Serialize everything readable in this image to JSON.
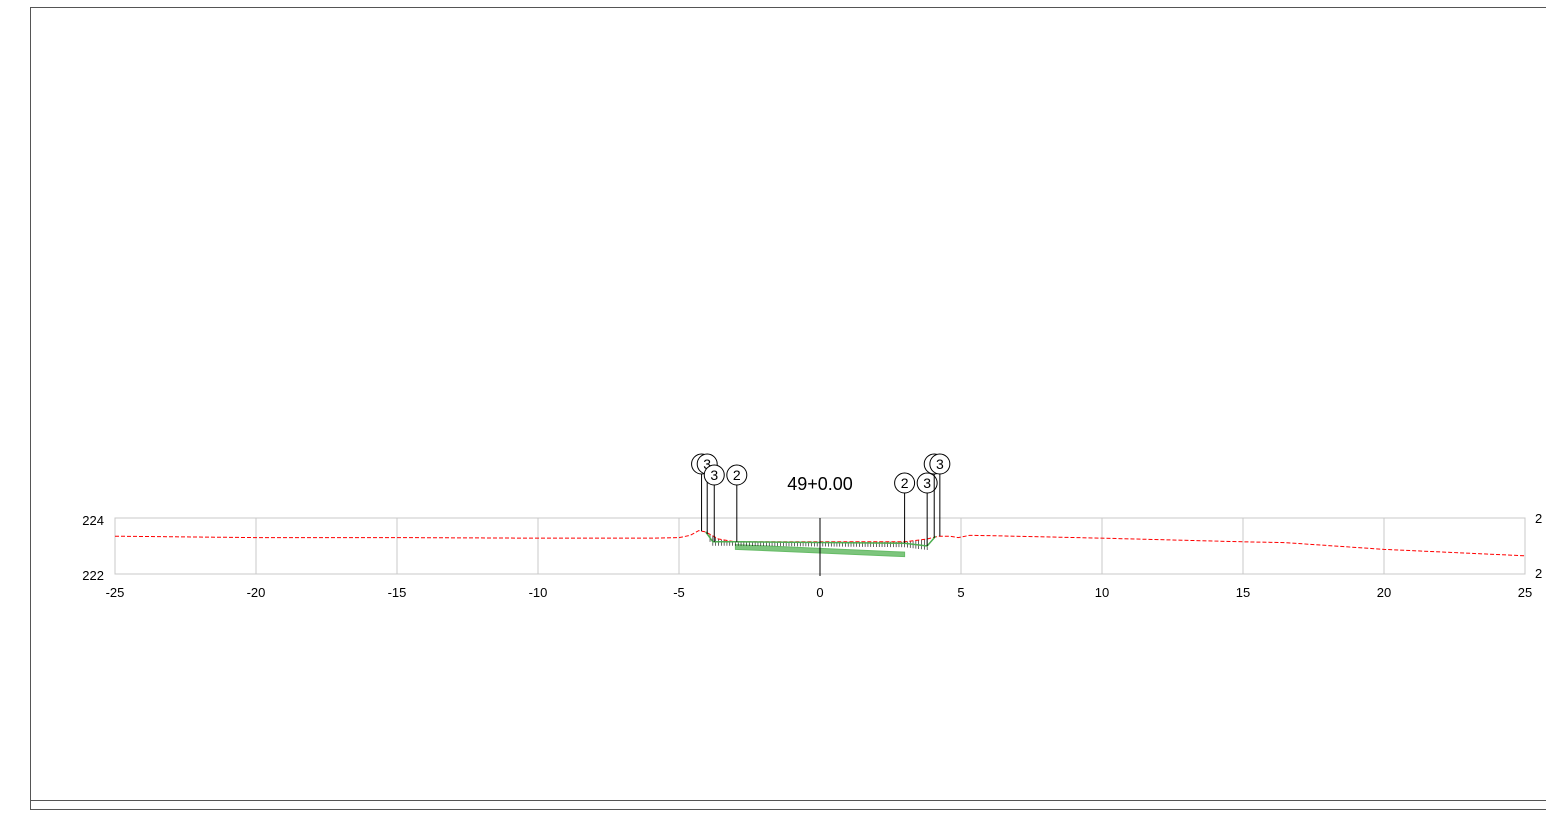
{
  "section": {
    "station_label": "49+0.00",
    "offset_axis": {
      "min": -25,
      "max": 25,
      "ticks": [
        -25,
        -20,
        -15,
        -10,
        -5,
        0,
        5,
        10,
        15,
        20,
        25
      ],
      "tick_labels": [
        "-25",
        "-20",
        "-15",
        "-10",
        "-5",
        "0",
        "5",
        "10",
        "15",
        "20",
        "25"
      ]
    },
    "elevation_axis": {
      "min": 222,
      "max": 224,
      "left_labels": [
        "224",
        "222"
      ],
      "right_labels": [
        "2",
        "2"
      ]
    },
    "existing_ground": {
      "color": "#ff0000",
      "points": [
        [
          -25,
          223.35
        ],
        [
          -20,
          223.3
        ],
        [
          -15,
          223.3
        ],
        [
          -10,
          223.28
        ],
        [
          -6,
          223.28
        ],
        [
          -5,
          223.3
        ],
        [
          -4.6,
          223.38
        ],
        [
          -4.3,
          223.55
        ],
        [
          -4.05,
          223.5
        ],
        [
          -3.6,
          223.25
        ],
        [
          -3,
          223.15
        ],
        [
          -2,
          223.15
        ],
        [
          0,
          223.15
        ],
        [
          2,
          223.15
        ],
        [
          3,
          223.15
        ],
        [
          3.8,
          223.25
        ],
        [
          4.2,
          223.35
        ],
        [
          4.6,
          223.35
        ],
        [
          4.9,
          223.3
        ],
        [
          5.3,
          223.38
        ],
        [
          6,
          223.37
        ],
        [
          10,
          223.28
        ],
        [
          15,
          223.15
        ],
        [
          16.5,
          223.12
        ],
        [
          20,
          222.88
        ],
        [
          25,
          222.65
        ]
      ]
    },
    "design_surface": {
      "color": "#4caf50",
      "points": [
        [
          -4.05,
          223.5
        ],
        [
          -3.8,
          223.15
        ],
        [
          -3,
          223.15
        ],
        [
          3,
          223.1
        ],
        [
          3.8,
          223.0
        ],
        [
          4.1,
          223.35
        ]
      ]
    },
    "pavement_layer": {
      "color": "#66bb66",
      "top": [
        [
          -3,
          223.05
        ],
        [
          3,
          222.78
        ]
      ],
      "bottom": [
        [
          -3,
          222.88
        ],
        [
          3,
          222.62
        ]
      ]
    },
    "callouts": [
      {
        "text": "3",
        "offset": -4.2,
        "row": 0
      },
      {
        "text": "3",
        "offset": -4.0,
        "row": 0
      },
      {
        "text": "3",
        "offset": -3.75,
        "row": 1
      },
      {
        "text": "2",
        "offset": -2.95,
        "row": 1
      },
      {
        "text": "2",
        "offset": 3.0,
        "row": 2
      },
      {
        "text": "3",
        "offset": 3.8,
        "row": 2
      },
      {
        "text": "3",
        "offset": 4.05,
        "row": 0
      },
      {
        "text": "3",
        "offset": 4.25,
        "row": 0
      }
    ]
  }
}
